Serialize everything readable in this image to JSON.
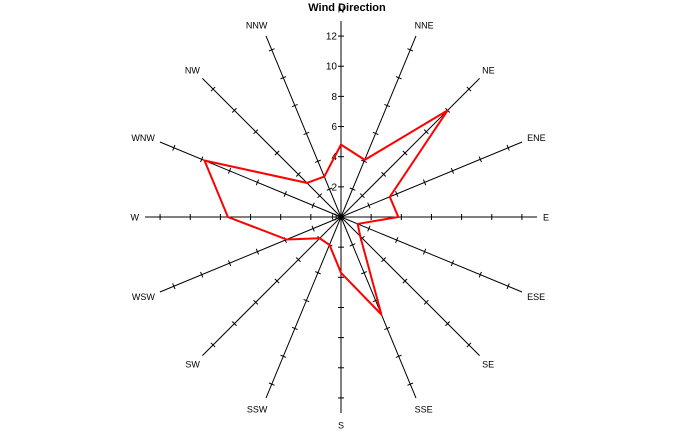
{
  "chart_data": {
    "type": "radar",
    "title": "Wind Direction",
    "directions": [
      "N",
      "NNE",
      "NE",
      "ENE",
      "E",
      "ESE",
      "SE",
      "SSE",
      "S",
      "SSW",
      "SW",
      "WSW",
      "W",
      "WNW",
      "NW",
      "NNW"
    ],
    "radial_ticks": [
      "0",
      "2",
      "4",
      "6",
      "8",
      "10",
      "12"
    ],
    "rlim": [
      0,
      13
    ],
    "series": [
      {
        "values": [
          4.8,
          4.1,
          10.0,
          3.5,
          3.8,
          1.2,
          1.8,
          7.0,
          3.7,
          2.0,
          2.0,
          3.9,
          7.5,
          9.8,
          3.2,
          2.9
        ],
        "color": "#ff0000"
      }
    ],
    "axis_color": "#000000",
    "grid": false,
    "legend": "none"
  }
}
